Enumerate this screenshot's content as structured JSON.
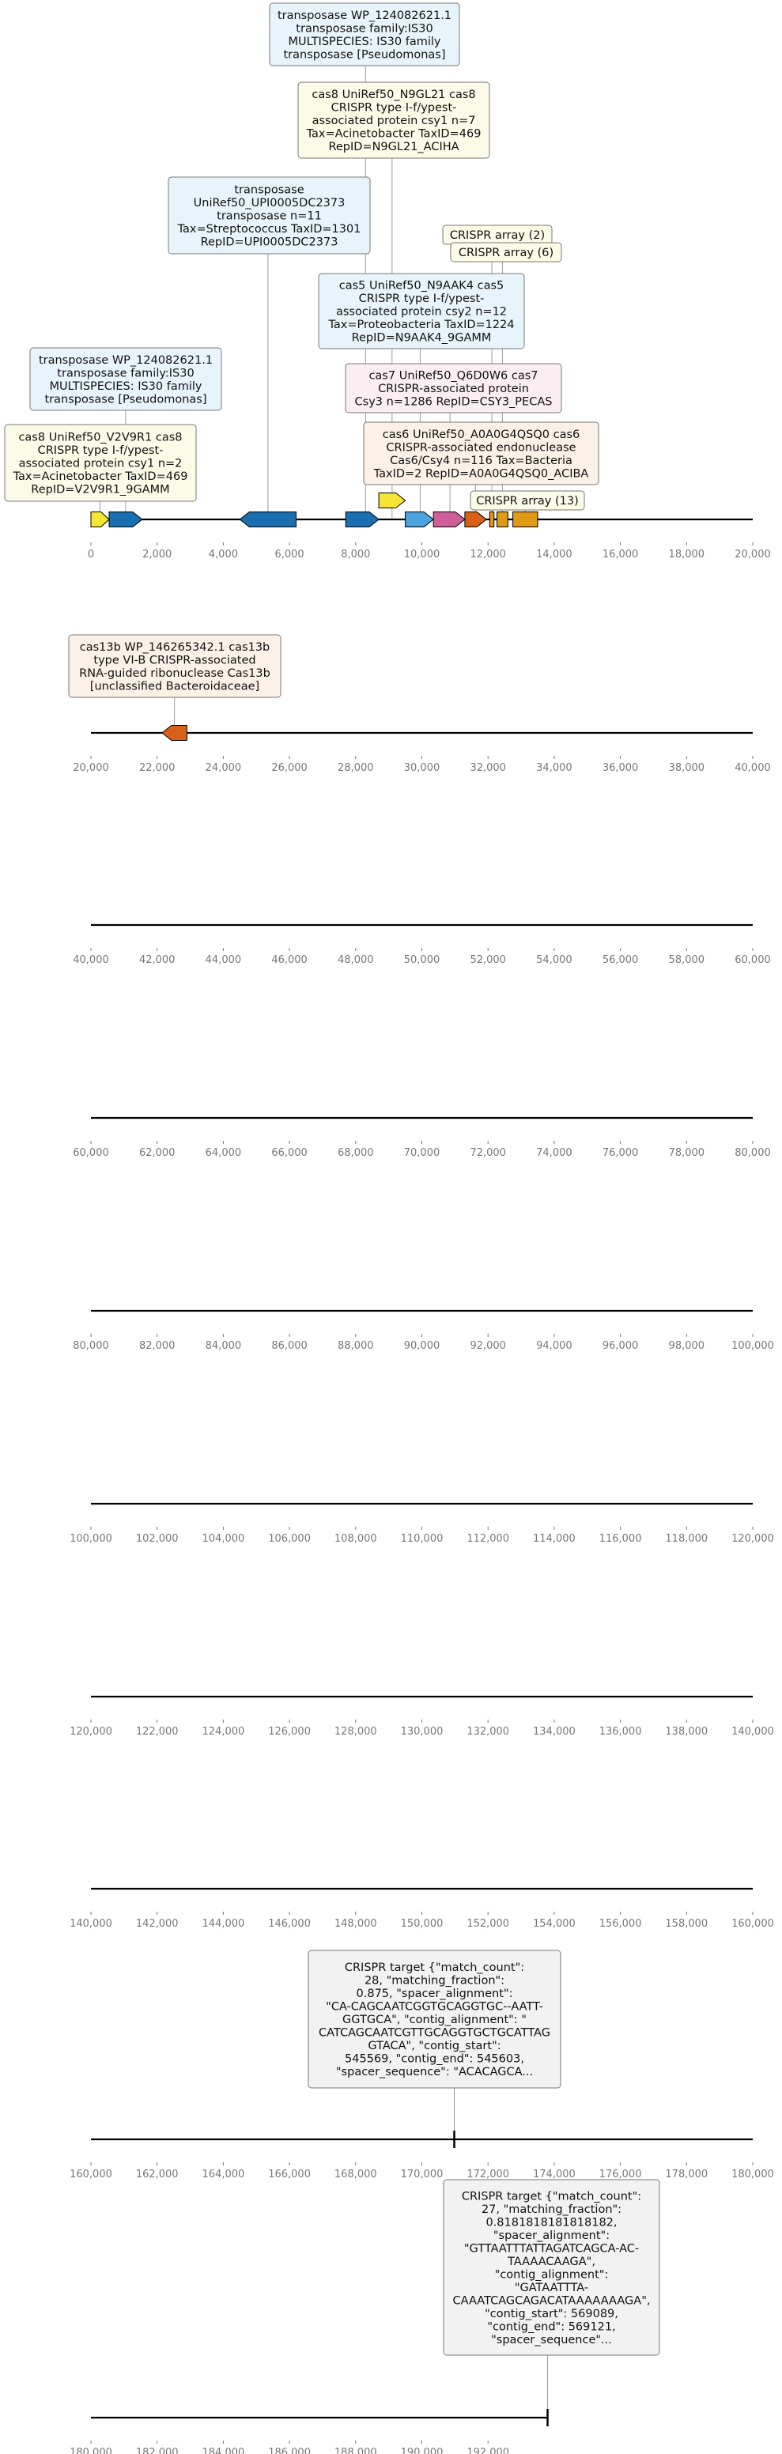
{
  "colors": {
    "cas8": "#f6e533",
    "transposase": "#1a6fb0",
    "cas5": "#f6e533",
    "cas7": "#4aa3dd",
    "cas6": "#cf5f99",
    "cas13b": "#d9601a",
    "orange": "#d9601a",
    "crispr": "#e09a16",
    "box_yellow": "#fbfbe8",
    "box_blue": "#e8f4fb",
    "box_pink": "#fbeef3",
    "box_peach": "#fcf1e6",
    "box_grey": "#f2f2f2"
  },
  "tracks": [
    {
      "range": [
        0,
        20000
      ],
      "ticks": [
        "0",
        "2,000",
        "4,000",
        "6,000",
        "8,000",
        "10,000",
        "12,000",
        "14,000",
        "16,000",
        "18,000",
        "20,000"
      ],
      "features": [
        {
          "start": 0,
          "end": 550,
          "strand": 1,
          "type": "cas8"
        },
        {
          "start": 550,
          "end": 1550,
          "strand": 1,
          "type": "transposase"
        },
        {
          "start": 4500,
          "end": 6200,
          "strand": -1,
          "type": "transposase"
        },
        {
          "start": 7700,
          "end": 8700,
          "strand": 1,
          "type": "transposase"
        },
        {
          "start": 8700,
          "end": 9500,
          "strand": 1,
          "type": "cas8",
          "lane": 1
        },
        {
          "start": 9500,
          "end": 10350,
          "strand": 1,
          "type": "cas7"
        },
        {
          "start": 10350,
          "end": 11300,
          "strand": 1,
          "type": "cas6"
        },
        {
          "start": 11300,
          "end": 11950,
          "strand": 1,
          "type": "orange"
        },
        {
          "start": 12050,
          "end": 12180,
          "strand": 0,
          "type": "crispr"
        },
        {
          "start": 12270,
          "end": 12600,
          "strand": 0,
          "type": "crispr"
        },
        {
          "start": 12750,
          "end": 13500,
          "strand": 0,
          "type": "crispr"
        }
      ],
      "labels": [
        {
          "lines": [
            "transposase WP_124082621.1",
            "transposase family:IS30",
            "MULTISPECIES: IS30 family",
            "transposase [Pseudomonas]"
          ],
          "box": "box_blue",
          "anchor": 8300
        },
        {
          "lines": [
            "cas8 UniRef50_N9GL21 cas8",
            "CRISPR type I-f/ypest-",
            "associated protein csy1 n=7",
            "Tax=Acinetobacter TaxID=469",
            "RepID=N9GL21_ACIHA"
          ],
          "box": "box_yellow",
          "anchor": 9100
        },
        {
          "lines": [
            "transposase",
            "UniRef50_UPI0005DC2373",
            "transposase n=11",
            "Tax=Streptococcus TaxID=1301",
            "RepID=UPI0005DC2373"
          ],
          "box": "box_blue",
          "anchor": 5350
        },
        {
          "lines": [
            "CRISPR array (2)"
          ],
          "box": "box_yellow",
          "anchor": 12115
        },
        {
          "lines": [
            "CRISPR array (6)"
          ],
          "box": "box_yellow",
          "anchor": 12435
        },
        {
          "lines": [
            "cas5 UniRef50_N9AAK4 cas5",
            "CRISPR type I-f/ypest-",
            "associated protein csy2 n=12",
            "Tax=Proteobacteria TaxID=1224",
            "RepID=N9AAK4_9GAMM"
          ],
          "box": "box_blue",
          "anchor": 9950
        },
        {
          "lines": [
            "transposase WP_124082621.1",
            "transposase family:IS30",
            "MULTISPECIES: IS30 family",
            "transposase [Pseudomonas]"
          ],
          "box": "box_blue",
          "anchor": 1050
        },
        {
          "lines": [
            "cas7 UniRef50_Q6D0W6 cas7",
            "CRISPR-associated protein",
            "Csy3 n=1286 RepID=CSY3_PECAS"
          ],
          "box": "box_pink",
          "anchor": 10850
        },
        {
          "lines": [
            "cas8 UniRef50_V2V9R1 cas8",
            "CRISPR type I-f/ypest-",
            "associated protein csy1 n=2",
            "Tax=Acinetobacter TaxID=469",
            "RepID=V2V9R1_9GAMM"
          ],
          "box": "box_yellow",
          "anchor": 275
        },
        {
          "lines": [
            "cas6 UniRef50_A0A0G4QSQ0 cas6",
            "CRISPR-associated endonuclease",
            "Cas6/Csy4 n=116 Tax=Bacteria",
            "TaxID=2 RepID=A0A0G4QSQ0_ACIBA"
          ],
          "box": "box_peach",
          "anchor": 11620
        },
        {
          "lines": [
            "CRISPR array (13)"
          ],
          "box": "box_yellow",
          "anchor": 13125
        }
      ]
    },
    {
      "range": [
        20000,
        40000
      ],
      "ticks": [
        "20,000",
        "22,000",
        "24,000",
        "26,000",
        "28,000",
        "30,000",
        "32,000",
        "34,000",
        "36,000",
        "38,000",
        "40,000"
      ],
      "features": [
        {
          "start": 22150,
          "end": 22900,
          "strand": -1,
          "type": "cas13b"
        }
      ],
      "labels": [
        {
          "lines": [
            "cas13b WP_146265342.1 cas13b",
            "type VI-B CRISPR-associated",
            "RNA-guided ribonuclease Cas13b",
            "[unclassified Bacteroidaceae]"
          ],
          "box": "box_peach",
          "anchor": 22525
        }
      ]
    },
    {
      "range": [
        40000,
        60000
      ],
      "ticks": [
        "40,000",
        "42,000",
        "44,000",
        "46,000",
        "48,000",
        "50,000",
        "52,000",
        "54,000",
        "56,000",
        "58,000",
        "60,000"
      ],
      "features": [],
      "labels": []
    },
    {
      "range": [
        60000,
        80000
      ],
      "ticks": [
        "60,000",
        "62,000",
        "64,000",
        "66,000",
        "68,000",
        "70,000",
        "72,000",
        "74,000",
        "76,000",
        "78,000",
        "80,000"
      ],
      "features": [],
      "labels": []
    },
    {
      "range": [
        80000,
        100000
      ],
      "ticks": [
        "80,000",
        "82,000",
        "84,000",
        "86,000",
        "88,000",
        "90,000",
        "92,000",
        "94,000",
        "96,000",
        "98,000",
        "100,000"
      ],
      "features": [],
      "labels": []
    },
    {
      "range": [
        100000,
        120000
      ],
      "ticks": [
        "100,000",
        "102,000",
        "104,000",
        "106,000",
        "108,000",
        "110,000",
        "112,000",
        "114,000",
        "116,000",
        "118,000",
        "120,000"
      ],
      "features": [],
      "labels": []
    },
    {
      "range": [
        120000,
        140000
      ],
      "ticks": [
        "120,000",
        "122,000",
        "124,000",
        "126,000",
        "128,000",
        "130,000",
        "132,000",
        "134,000",
        "136,000",
        "138,000",
        "140,000"
      ],
      "features": [],
      "labels": []
    },
    {
      "range": [
        140000,
        160000
      ],
      "ticks": [
        "140,000",
        "142,000",
        "144,000",
        "146,000",
        "148,000",
        "150,000",
        "152,000",
        "154,000",
        "156,000",
        "158,000",
        "160,000"
      ],
      "features": [],
      "labels": []
    },
    {
      "range": [
        160000,
        180000
      ],
      "ticks": [
        "160,000",
        "162,000",
        "164,000",
        "166,000",
        "168,000",
        "170,000",
        "172,000",
        "174,000",
        "176,000",
        "178,000",
        "180,000"
      ],
      "features": [
        {
          "start": 170960,
          "end": 171000,
          "strand": 0,
          "type": "target"
        }
      ],
      "labels": [
        {
          "lines": [
            "CRISPR target {\"match_count\":",
            "28, \"matching_fraction\":",
            "0.875, \"spacer_alignment\":",
            "\"CA-CAGCAATCGGTGCAGGTGC--AATT-",
            "GGTGCA\", \"contig_alignment\": \"",
            "CATCAGCAATCGTTGCAGGTGCTGCATTAG",
            "GTACA\", \"contig_start\":",
            "545569, \"contig_end\": 545603,",
            "\"spacer_sequence\": \"ACACAGCA..."
          ],
          "box": "box_grey",
          "anchor": 170980
        }
      ]
    },
    {
      "range": [
        180000,
        200000
      ],
      "ticks": [
        "180,000",
        "182,000",
        "184,000",
        "186,000",
        "188,000",
        "190,000",
        "192,000"
      ],
      "line_end": 193800,
      "features": [
        {
          "start": 193780,
          "end": 193820,
          "strand": 0,
          "type": "target"
        }
      ],
      "labels": [
        {
          "lines": [
            "CRISPR target {\"match_count\":",
            "27, \"matching_fraction\":",
            "0.8181818181818182,",
            "\"spacer_alignment\":",
            "\"GTTAATTTATTAGATCAGCA-AC-",
            "TAAAACAAGA\",",
            "\"contig_alignment\":",
            "\"GATAATTTA-",
            "CAAATCAGCAGACATAAAAAAAGA\",",
            "\"contig_start\": 569089,",
            "\"contig_end\": 569121,",
            "\"spacer_sequence\"..."
          ],
          "box": "box_grey",
          "anchor": 193800
        }
      ]
    }
  ]
}
